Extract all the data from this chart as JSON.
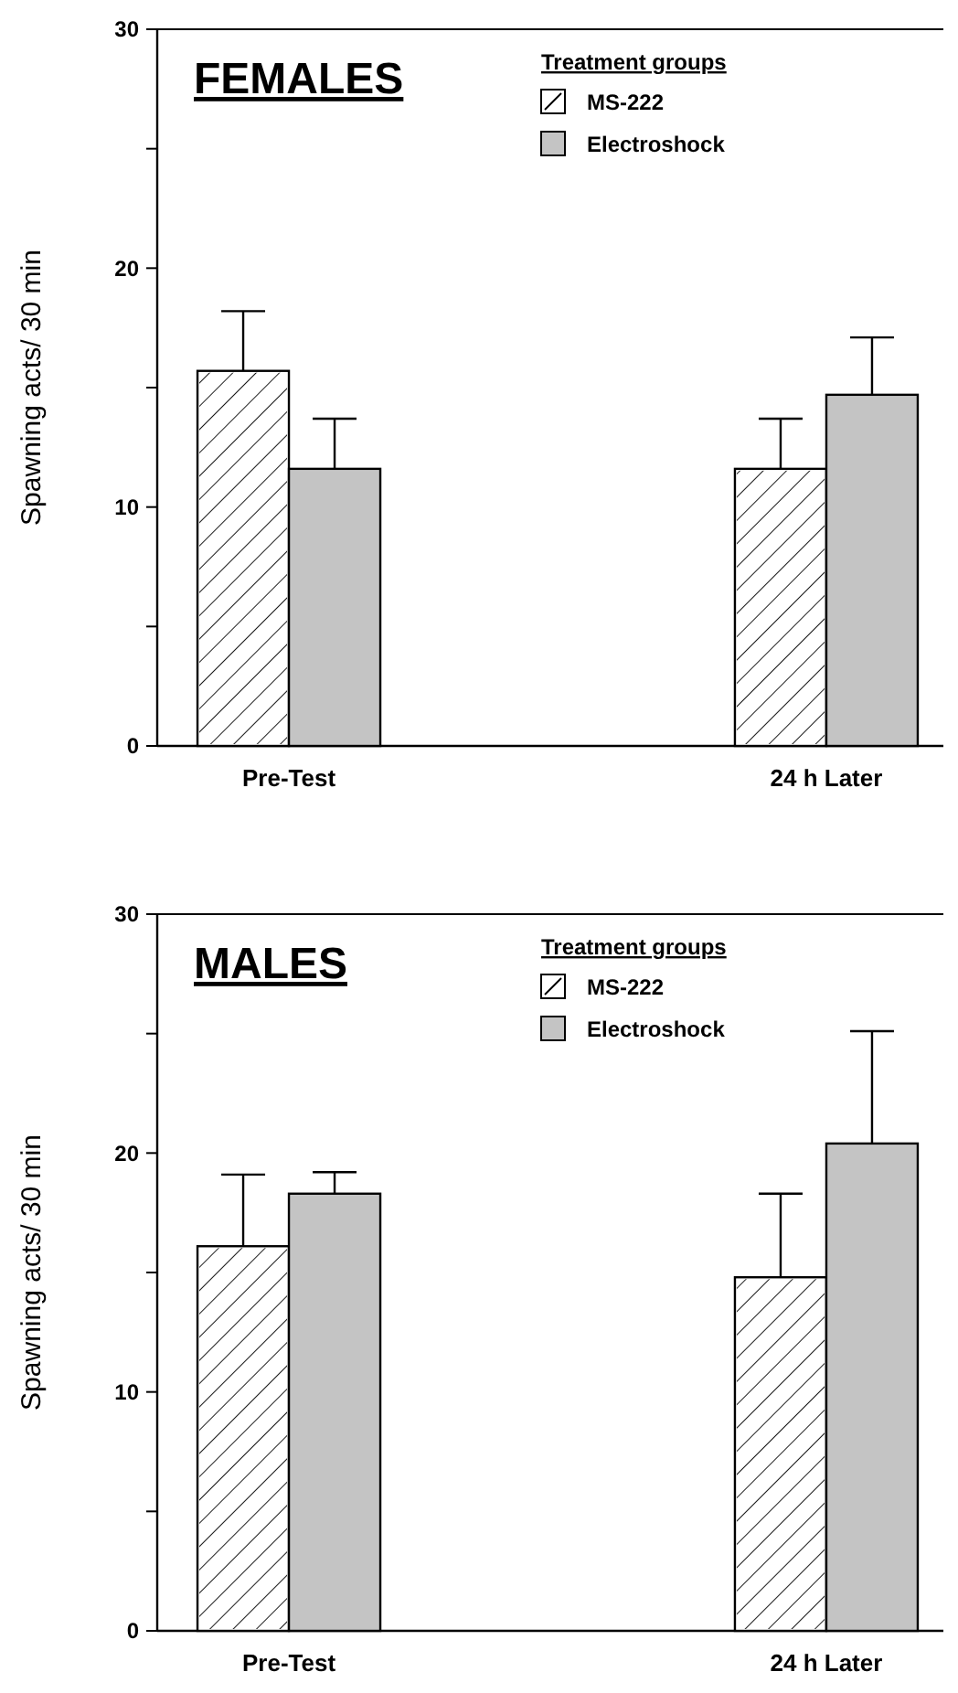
{
  "chart_data": [
    {
      "type": "bar",
      "title": "FEMALES",
      "ylabel": "Spawning acts/ 30 min",
      "legend_title": "Treatment groups",
      "legend": "top",
      "categories": [
        "Pre-Test",
        "24 h Later"
      ],
      "ylim": [
        0,
        30
      ],
      "yticks": [
        0,
        {
          "value": 5,
          "label": null
        },
        10,
        {
          "value": 15,
          "label": null
        },
        20,
        {
          "value": 25,
          "label": null
        },
        30
      ],
      "series": [
        {
          "name": "MS-222",
          "color": "#ffffff",
          "values": [
            15.7,
            11.6
          ],
          "errors": [
            [
              15.7,
              18.2
            ],
            [
              11.6,
              13.7
            ]
          ]
        },
        {
          "name": "Electroshock",
          "color": "#c4c4c4",
          "values": [
            11.6,
            14.7
          ],
          "errors": [
            [
              11.6,
              13.7
            ],
            [
              14.7,
              17.1
            ]
          ]
        }
      ]
    },
    {
      "type": "bar",
      "title": "MALES",
      "ylabel": "Spawning acts/ 30 min",
      "legend_title": "Treatment groups",
      "legend": "top",
      "categories": [
        "Pre-Test",
        "24 h Later"
      ],
      "ylim": [
        0,
        30
      ],
      "yticks": [
        0,
        {
          "value": 5,
          "label": null
        },
        10,
        {
          "value": 15,
          "label": null
        },
        20,
        {
          "value": 25,
          "label": null
        },
        30
      ],
      "series": [
        {
          "name": "MS-222",
          "color": "#ffffff",
          "values": [
            16.1,
            14.8
          ],
          "errors": [
            [
              16.1,
              19.1
            ],
            [
              14.8,
              18.3
            ]
          ]
        },
        {
          "name": "Electroshock",
          "color": "#c4c4c4",
          "values": [
            18.3,
            20.4
          ],
          "errors": [
            [
              18.3,
              19.2
            ],
            [
              20.4,
              25.1
            ]
          ]
        }
      ]
    }
  ]
}
